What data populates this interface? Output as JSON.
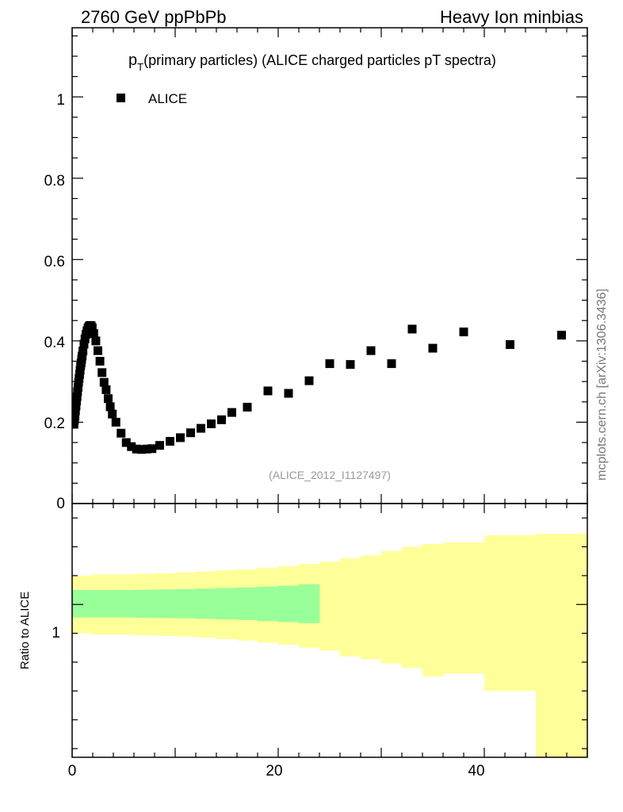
{
  "header": {
    "left": "2760 GeV ppPbPb",
    "right": "Heavy Ion minbias"
  },
  "side_label": "mcplots.cern.ch [arXiv:1306.3436]",
  "colors": {
    "marker": "#000000",
    "band_outer": "#ffff99",
    "band_inner": "#99ff99"
  },
  "chart_data": [
    {
      "type": "scatter",
      "title_main": "p",
      "title_sub": "T",
      "title_rest": "(primary particles) (ALICE charged particles pT spectra)",
      "reference": "(ALICE_2012_I1127497)",
      "xlim": [
        0,
        50
      ],
      "ylim": [
        0,
        1.17
      ],
      "ytick_labels": [
        "0",
        "0.2",
        "0.4",
        "0.6",
        "0.8",
        "1"
      ],
      "legend": {
        "label": "ALICE",
        "position": "top-left"
      },
      "series": [
        {
          "name": "ALICE",
          "x": [
            0.175,
            0.225,
            0.275,
            0.325,
            0.375,
            0.425,
            0.475,
            0.525,
            0.575,
            0.625,
            0.675,
            0.725,
            0.775,
            0.825,
            0.875,
            0.925,
            0.975,
            1.05,
            1.15,
            1.25,
            1.35,
            1.45,
            1.55,
            1.65,
            1.75,
            1.85,
            1.95,
            2.1,
            2.3,
            2.5,
            2.7,
            2.9,
            3.1,
            3.3,
            3.5,
            3.7,
            3.9,
            4.25,
            4.75,
            5.25,
            5.75,
            6.25,
            6.75,
            7.25,
            7.75,
            8.5,
            9.5,
            10.5,
            11.5,
            12.5,
            13.5,
            14.5,
            15.5,
            17.0,
            19.0,
            21.0,
            23.0,
            25.0,
            27.0,
            29.0,
            31.0,
            33.0,
            35.0,
            38.0,
            42.5,
            47.5
          ],
          "y": [
            0.195,
            0.205,
            0.215,
            0.228,
            0.24,
            0.252,
            0.263,
            0.275,
            0.286,
            0.298,
            0.308,
            0.318,
            0.328,
            0.338,
            0.346,
            0.355,
            0.363,
            0.375,
            0.392,
            0.405,
            0.416,
            0.425,
            0.432,
            0.436,
            0.438,
            0.437,
            0.432,
            0.418,
            0.4,
            0.376,
            0.35,
            0.322,
            0.298,
            0.28,
            0.258,
            0.238,
            0.22,
            0.2,
            0.173,
            0.15,
            0.14,
            0.134,
            0.133,
            0.134,
            0.135,
            0.143,
            0.153,
            0.162,
            0.174,
            0.185,
            0.196,
            0.206,
            0.224,
            0.237,
            0.277,
            0.271,
            0.302,
            0.344,
            0.342,
            0.376,
            0.344,
            0.429,
            0.382,
            0.422,
            0.391,
            0.414
          ]
        }
      ]
    },
    {
      "type": "area",
      "ylabel": "Ratio to ALICE",
      "xlim": [
        0,
        50
      ],
      "ylim": [
        0.47,
        1.35
      ],
      "ytick_labels": [
        "1"
      ],
      "xtick_labels": [
        "0",
        "20",
        "40"
      ],
      "bins": [
        0,
        2,
        4,
        6,
        8,
        10,
        12,
        14,
        16,
        18,
        20,
        22,
        24,
        26,
        28,
        30,
        32,
        34,
        36,
        40,
        45,
        50
      ],
      "outer_band": {
        "low": [
          0.9,
          0.895,
          0.895,
          0.893,
          0.891,
          0.889,
          0.885,
          0.88,
          0.875,
          0.868,
          0.86,
          0.85,
          0.84,
          0.82,
          0.81,
          0.795,
          0.78,
          0.75,
          0.76,
          0.7,
          0.47
        ],
        "high": [
          1.1,
          1.104,
          1.104,
          1.106,
          1.108,
          1.111,
          1.114,
          1.118,
          1.122,
          1.127,
          1.133,
          1.14,
          1.148,
          1.16,
          1.17,
          1.185,
          1.2,
          1.21,
          1.215,
          1.24,
          1.245
        ]
      },
      "inner_band": {
        "x_end": 24,
        "low": [
          0.955,
          0.955,
          0.955,
          0.954,
          0.953,
          0.952,
          0.95,
          0.948,
          0.946,
          0.942,
          0.939,
          0.935
        ],
        "high": [
          1.05,
          1.05,
          1.05,
          1.051,
          1.052,
          1.053,
          1.055,
          1.057,
          1.059,
          1.062,
          1.065,
          1.07
        ]
      }
    }
  ]
}
